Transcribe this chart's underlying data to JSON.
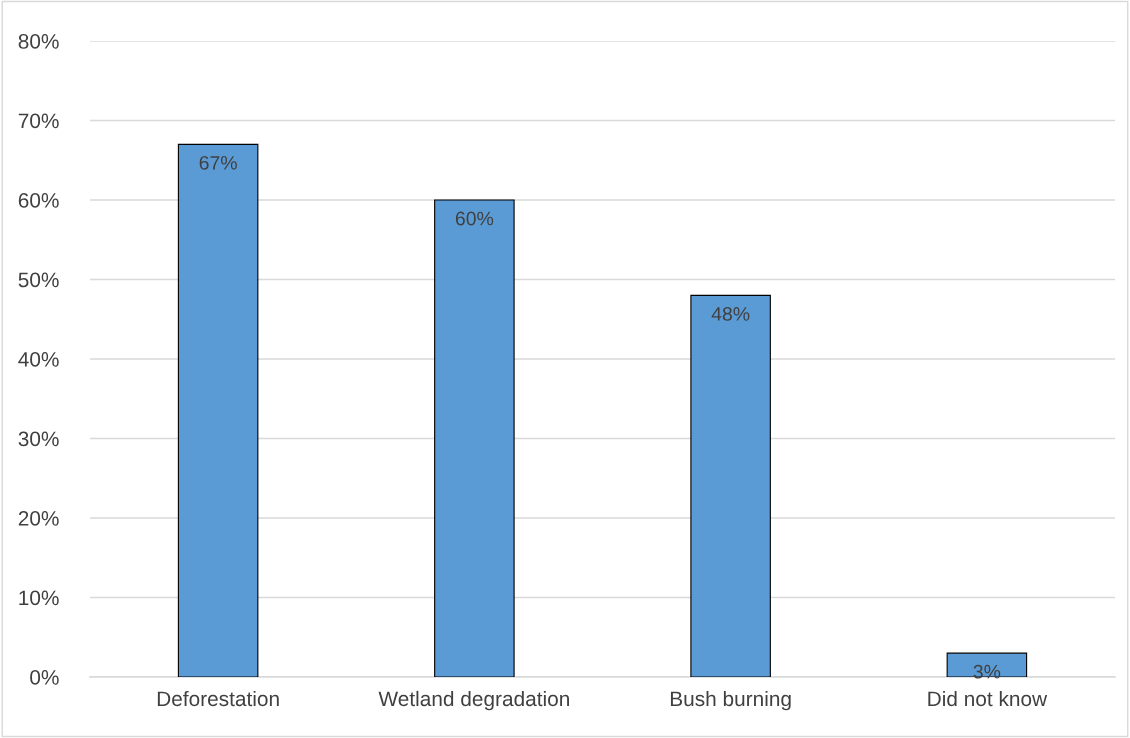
{
  "chart_data": {
    "type": "bar",
    "categories": [
      "Deforestation",
      "Wetland degradation",
      "Bush burning",
      "Did not know"
    ],
    "values": [
      67,
      60,
      48,
      3
    ],
    "value_labels": [
      "67%",
      "60%",
      "48%",
      "3%"
    ],
    "color": "#5b9bd5",
    "ylim": [
      0,
      80
    ],
    "yticks": [
      {
        "value": 0,
        "label": "0%"
      },
      {
        "value": 10,
        "label": "10%"
      },
      {
        "value": 20,
        "label": "20%"
      },
      {
        "value": 30,
        "label": "30%"
      },
      {
        "value": 40,
        "label": "40%"
      },
      {
        "value": 50,
        "label": "50%"
      },
      {
        "value": 60,
        "label": "60%"
      },
      {
        "value": 70,
        "label": "70%"
      },
      {
        "value": 80,
        "label": "80%"
      }
    ],
    "grid": "y",
    "legend": false
  }
}
